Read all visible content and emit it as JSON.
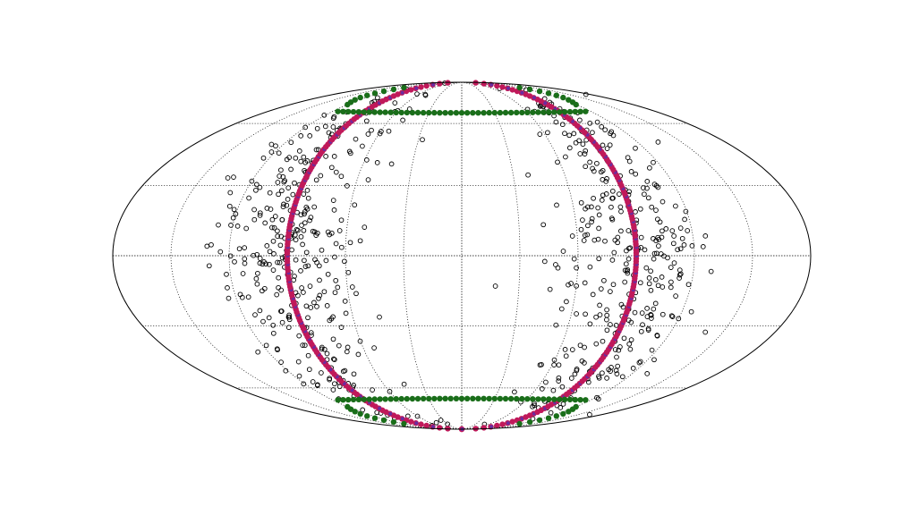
{
  "chart_data": {
    "type": "scatter",
    "projection": "mollweide",
    "title": "",
    "grid": true,
    "graticule": {
      "latitudes_deg": [
        -60,
        -30,
        0,
        30,
        60
      ],
      "longitudes_deg": [
        -150,
        -120,
        -90,
        -60,
        -30,
        0,
        30,
        60,
        90,
        120,
        150
      ]
    },
    "series": [
      {
        "kind": "open-circles",
        "color": "#000000",
        "description_count": 720,
        "lon_band_deg": [
          [
            -140,
            -60
          ],
          [
            60,
            140
          ]
        ],
        "lat_range_deg": [
          -90,
          90
        ]
      },
      {
        "kind": "ring",
        "color": "#c0195a",
        "secondary_color": "#6a2ca0",
        "lon_center_deg": 0,
        "lon_offset_deg": 90,
        "lat_range_deg": [
          -90,
          90
        ]
      },
      {
        "kind": "filled-dots",
        "color": "#1a6e1a",
        "lat_deg": [
          66,
          -66
        ],
        "lon_range_deg": [
          -115,
          115
        ],
        "hook_lon_deg": [
          -120,
          120
        ]
      }
    ]
  }
}
